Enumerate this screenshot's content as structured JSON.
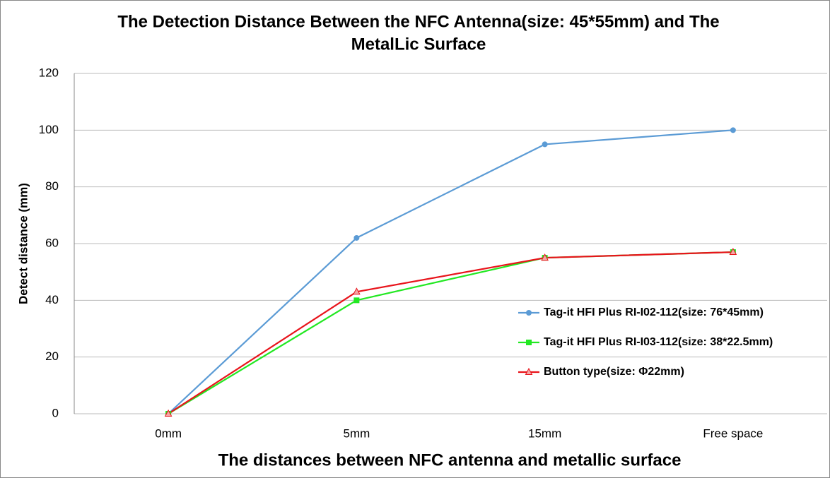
{
  "chart_data": {
    "type": "line",
    "title": [
      "The Detection Distance Between the NFC Antenna(size: 45*55mm) and The",
      "MetalLic Surface"
    ],
    "x_label": "The distances between NFC antenna and metallic surface",
    "y_label": "Detect distance (mm)",
    "categories": [
      "0mm",
      "5mm",
      "15mm",
      "Free space"
    ],
    "series": [
      {
        "name": "Tag-it HFI Plus RI-I02-112(size: 76*45mm)",
        "color": "#5b9bd5",
        "marker": "circle",
        "values": [
          0,
          62,
          95,
          100
        ]
      },
      {
        "name": "Tag-it HFI Plus RI-I03-112(size: 38*22.5mm)",
        "color": "#22e822",
        "marker": "square",
        "values": [
          0,
          40,
          55,
          57
        ]
      },
      {
        "name": "Button type(size: Φ22mm)",
        "color": "#e8141b",
        "marker": "triangle",
        "values": [
          0,
          43,
          55,
          57
        ]
      }
    ],
    "ylim": [
      0,
      120
    ],
    "yticks": [
      0,
      20,
      40,
      60,
      80,
      100,
      120
    ],
    "grid": true,
    "legend": "lower right"
  }
}
